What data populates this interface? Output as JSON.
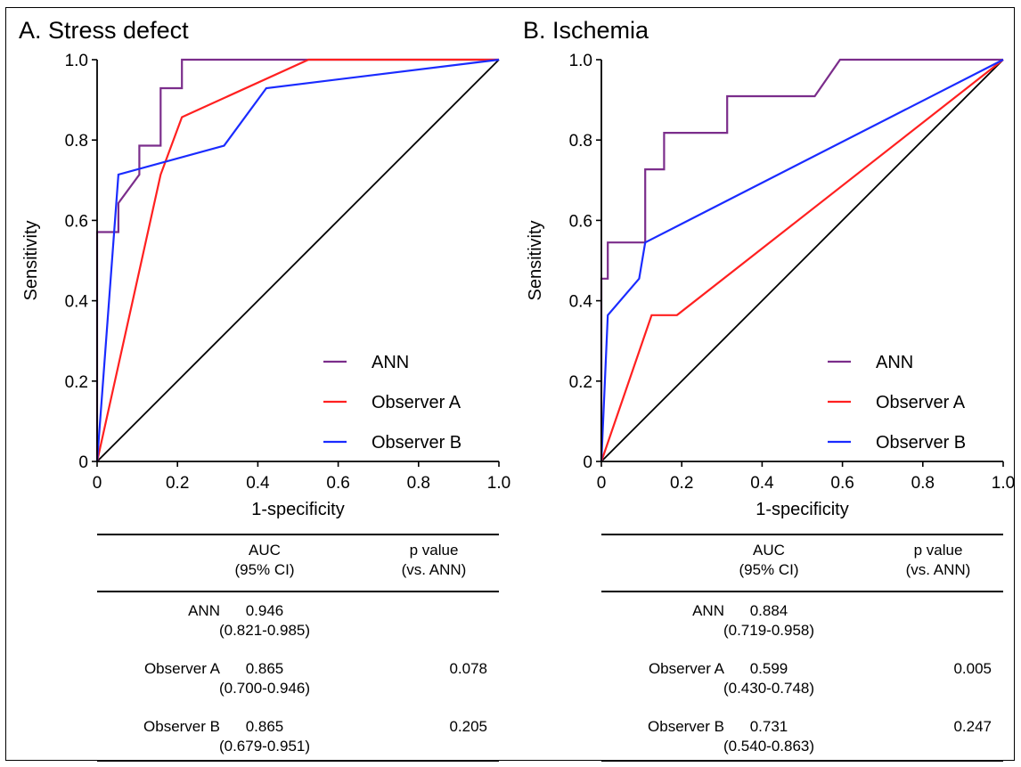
{
  "colors": {
    "ann": "#7B2D8B",
    "observer_a": "#FF2020",
    "observer_b": "#1A2BFF",
    "diagonal": "#000000"
  },
  "panels": [
    {
      "id": "a",
      "title": "A. Stress defect",
      "chart_data": {
        "type": "line",
        "title": "A. Stress defect",
        "xlabel": "1-specificity",
        "ylabel": "Sensitivity",
        "xlim": [
          0,
          1
        ],
        "ylim": [
          0,
          1
        ],
        "xticks": [
          "0",
          "0.2",
          "0.4",
          "0.6",
          "0.8",
          "1.0"
        ],
        "yticks": [
          "0",
          "0.2",
          "0.4",
          "0.6",
          "0.8",
          "1.0"
        ],
        "legend_position": "bottom-right",
        "series": [
          {
            "name": "ANN",
            "color": "#7B2D8B",
            "x": [
              0,
              0,
              0.053,
              0.053,
              0.105,
              0.105,
              0.158,
              0.158,
              0.211,
              0.211,
              1.0
            ],
            "y": [
              0,
              0.571,
              0.571,
              0.643,
              0.714,
              0.786,
              0.786,
              0.929,
              0.929,
              1.0,
              1.0
            ]
          },
          {
            "name": "Observer A",
            "color": "#FF2020",
            "x": [
              0,
              0.158,
              0.211,
              0.526,
              1.0
            ],
            "y": [
              0,
              0.714,
              0.857,
              1.0,
              1.0
            ]
          },
          {
            "name": "Observer B",
            "color": "#1A2BFF",
            "x": [
              0,
              0.053,
              0.316,
              0.421,
              1.0
            ],
            "y": [
              0,
              0.714,
              0.786,
              0.929,
              1.0
            ]
          }
        ]
      },
      "table": {
        "headers": {
          "auc": [
            "AUC",
            "(95% CI)"
          ],
          "pval": [
            "p value",
            "(vs. ANN)"
          ]
        },
        "rows": [
          {
            "label": "ANN",
            "auc": "0.946",
            "ci": "(0.821-0.985)",
            "p": ""
          },
          {
            "label": "Observer A",
            "auc": "0.865",
            "ci": "(0.700-0.946)",
            "p": "0.078"
          },
          {
            "label": "Observer B",
            "auc": "0.865",
            "ci": "(0.679-0.951)",
            "p": "0.205"
          }
        ]
      }
    },
    {
      "id": "b",
      "title": "B. Ischemia",
      "chart_data": {
        "type": "line",
        "title": "B. Ischemia",
        "xlabel": "1-specificity",
        "ylabel": "Sensitivity",
        "xlim": [
          0,
          1
        ],
        "ylim": [
          0,
          1
        ],
        "xticks": [
          "0",
          "0.2",
          "0.4",
          "0.6",
          "0.8",
          "1.0"
        ],
        "yticks": [
          "0",
          "0.2",
          "0.4",
          "0.6",
          "0.8",
          "1.0"
        ],
        "legend_position": "bottom-right",
        "series": [
          {
            "name": "ANN",
            "color": "#7B2D8B",
            "x": [
              0,
              0,
              0.016,
              0.016,
              0.109,
              0.109,
              0.156,
              0.156,
              0.172,
              0.172,
              0.313,
              0.313,
              0.531,
              0.594,
              1.0
            ],
            "y": [
              0,
              0.455,
              0.455,
              0.545,
              0.545,
              0.727,
              0.727,
              0.818,
              0.818,
              0.818,
              0.818,
              0.909,
              0.909,
              1.0,
              1.0
            ]
          },
          {
            "name": "Observer A",
            "color": "#FF2020",
            "x": [
              0,
              0.125,
              0.188,
              1.0
            ],
            "y": [
              0,
              0.364,
              0.364,
              1.0
            ]
          },
          {
            "name": "Observer B",
            "color": "#1A2BFF",
            "x": [
              0,
              0.016,
              0.094,
              0.109,
              1.0
            ],
            "y": [
              0,
              0.364,
              0.455,
              0.545,
              1.0
            ]
          }
        ]
      },
      "table": {
        "headers": {
          "auc": [
            "AUC",
            "(95% CI)"
          ],
          "pval": [
            "p value",
            "(vs. ANN)"
          ]
        },
        "rows": [
          {
            "label": "ANN",
            "auc": "0.884",
            "ci": "(0.719-0.958)",
            "p": ""
          },
          {
            "label": "Observer A",
            "auc": "0.599",
            "ci": "(0.430-0.748)",
            "p": "0.005"
          },
          {
            "label": "Observer B",
            "auc": "0.731",
            "ci": "(0.540-0.863)",
            "p": "0.247"
          }
        ]
      }
    }
  ]
}
